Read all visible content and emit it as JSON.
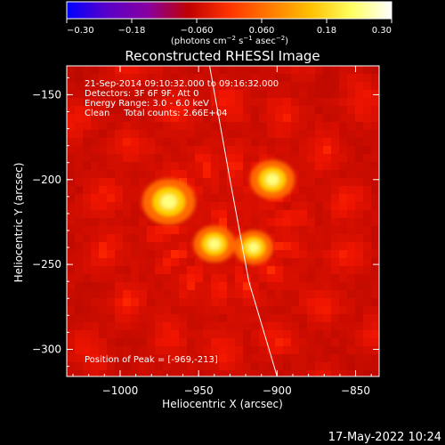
{
  "chart_data": {
    "type": "heatmap",
    "title": "Reconstructed RHESSI Image",
    "xlabel": "Heliocentric X (arcsec)",
    "ylabel": "Heliocentric Y (arcsec)",
    "xlim": [
      -1034,
      -835
    ],
    "ylim": [
      -316,
      -133
    ],
    "x_ticks": [
      -1000,
      -950,
      -900,
      -850
    ],
    "y_ticks": [
      -150,
      -200,
      -250,
      -300
    ],
    "colorbar": {
      "ticks": [
        "-0.30",
        "-0.18",
        "-0.060",
        "0.060",
        "0.18",
        "0.30"
      ],
      "unit_label": "(photons cm^-2 s^-1 asec^-2)",
      "range": [
        -0.3,
        0.3
      ],
      "colors": [
        "#0000ff",
        "#5a00c8",
        "#8800a0",
        "#c00000",
        "#ff3300",
        "#ff7a00",
        "#ffc000",
        "#ffff60",
        "#ffffff"
      ]
    },
    "info_lines": [
      "21-Sep-2014 09:10:32.000 to 09:16:32.000",
      "Detectors: 3F 6F 9F, Att 0",
      "Energy Range: 3.0 - 6.0 keV",
      "Clean     Total counts: 2.66E+04"
    ],
    "peak_label": "Position of Peak = [-969,-213]",
    "sources": [
      {
        "x": -969,
        "y": -213,
        "intensity": 0.3
      },
      {
        "x": -903,
        "y": -200,
        "intensity": 0.24
      },
      {
        "x": -940,
        "y": -238,
        "intensity": 0.22
      },
      {
        "x": -915,
        "y": -240,
        "intensity": 0.2
      }
    ],
    "limb_curve": [
      [
        -943,
        -133
      ],
      [
        -930,
        -200
      ],
      [
        -918,
        -260
      ],
      [
        -900,
        -316
      ]
    ]
  },
  "footer_date": "17-May-2022 10:24"
}
